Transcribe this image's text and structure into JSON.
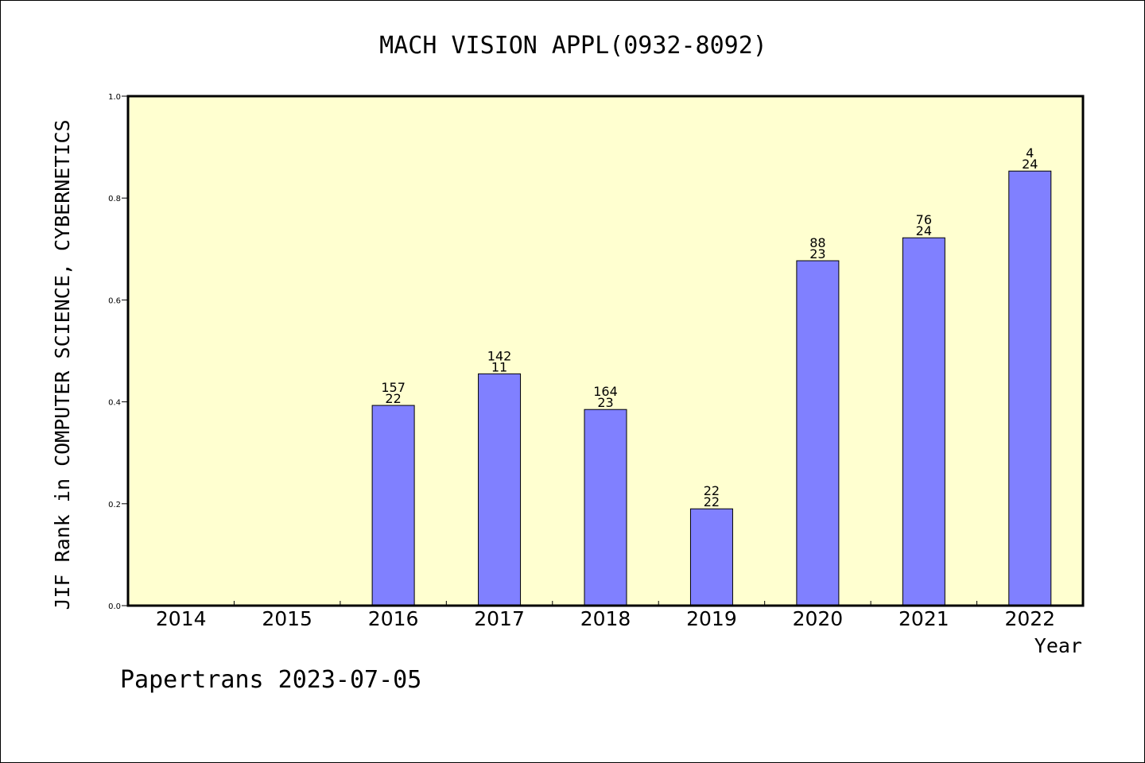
{
  "chart_data": {
    "type": "bar",
    "title": "MACH VISION APPL(0932-8092)",
    "xlabel": "Year",
    "ylabel": "JIF Rank in COMPUTER SCIENCE, CYBERNETICS",
    "categories": [
      "2014",
      "2015",
      "2016",
      "2017",
      "2018",
      "2019",
      "2020",
      "2021",
      "2022"
    ],
    "values": [
      null,
      null,
      0.393,
      0.455,
      0.385,
      0.19,
      0.677,
      0.722,
      0.853
    ],
    "labels_top": [
      "",
      "",
      "157",
      "142",
      "164",
      "22",
      "88",
      "76",
      "4"
    ],
    "labels_bottom": [
      "",
      "",
      "22",
      "11",
      "23",
      "22",
      "23",
      "24",
      "24"
    ],
    "ylim": [
      0,
      1.0
    ],
    "yticks": [
      "0.0",
      "0.2",
      "0.4",
      "0.6",
      "0.8",
      "1.0"
    ],
    "grid": false,
    "legend": "none",
    "colors": {
      "plot_background": "#ffffd0",
      "bar_fill": "#8080ff",
      "bar_stroke": "#000000",
      "frame": "#000000"
    }
  },
  "footer": {
    "text": "Papertrans 2023-07-05"
  }
}
